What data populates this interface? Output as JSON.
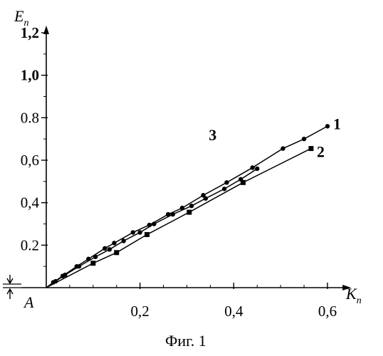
{
  "chart_data": {
    "type": "line",
    "ylabel": "Eп",
    "xlabel": "Kп",
    "ylabel_main": "E",
    "ylabel_sub": "п",
    "xlabel_main": "K",
    "xlabel_sub": "п",
    "xlim": [
      0,
      0.62
    ],
    "ylim": [
      0,
      1.2
    ],
    "x_ticks": [
      {
        "value": 0.2,
        "label": "0,2"
      },
      {
        "value": 0.4,
        "label": "0,4"
      },
      {
        "value": 0.6,
        "label": "0,6"
      }
    ],
    "x_minor_ticks": [
      0.05,
      0.1,
      0.15,
      0.25,
      0.3,
      0.35,
      0.45,
      0.5,
      0.55
    ],
    "y_ticks": [
      {
        "value": 0.2,
        "label": "0.2",
        "bold": false
      },
      {
        "value": 0.4,
        "label": "0,4",
        "bold": false
      },
      {
        "value": 0.6,
        "label": "0,6",
        "bold": false
      },
      {
        "value": 0.8,
        "label": "0.8",
        "bold": false
      },
      {
        "value": 1.0,
        "label": "1,0",
        "bold": true
      },
      {
        "value": 1.2,
        "label": "1,2",
        "bold": true
      }
    ],
    "y_minor_ticks": [
      0.1,
      0.3,
      0.5,
      0.7,
      0.9,
      1.1
    ],
    "series": [
      {
        "name": "1",
        "marker": "circle",
        "x": [
          0.0,
          0.015,
          0.035,
          0.065,
          0.09,
          0.125,
          0.145,
          0.185,
          0.22,
          0.26,
          0.29,
          0.335,
          0.385,
          0.44,
          0.505,
          0.55,
          0.6
        ],
        "y": [
          0.0,
          0.025,
          0.055,
          0.1,
          0.135,
          0.185,
          0.21,
          0.26,
          0.295,
          0.345,
          0.375,
          0.435,
          0.495,
          0.565,
          0.655,
          0.7,
          0.76
        ]
      },
      {
        "name": "2",
        "marker": "square",
        "x": [
          0.0,
          0.1,
          0.15,
          0.215,
          0.305,
          0.42,
          0.565
        ],
        "y": [
          0.0,
          0.115,
          0.165,
          0.25,
          0.355,
          0.495,
          0.655
        ]
      },
      {
        "name": "3",
        "marker": "circle",
        "x": [
          0.0,
          0.02,
          0.04,
          0.07,
          0.105,
          0.135,
          0.165,
          0.2,
          0.23,
          0.27,
          0.31,
          0.34,
          0.38,
          0.415,
          0.45
        ],
        "y": [
          0.0,
          0.03,
          0.06,
          0.1,
          0.145,
          0.18,
          0.22,
          0.26,
          0.3,
          0.345,
          0.385,
          0.42,
          0.465,
          0.51,
          0.56
        ]
      }
    ],
    "annotation_A": "A",
    "caption": "Фиг. 1"
  }
}
